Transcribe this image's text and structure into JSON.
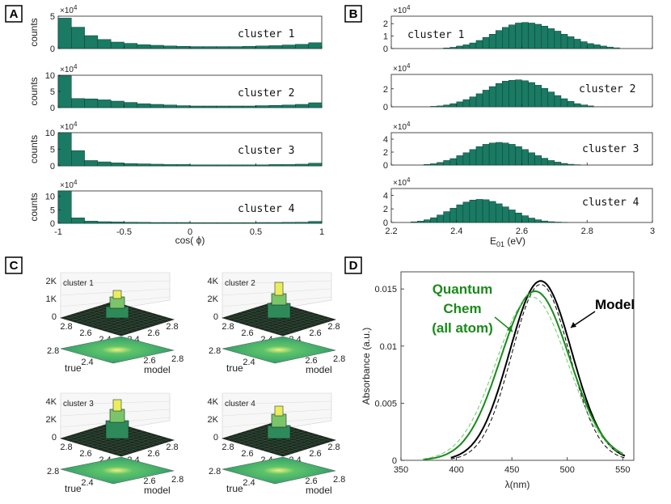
{
  "panel_labels": [
    "A",
    "B",
    "C",
    "D"
  ],
  "colors": {
    "bar": "#1a7a63",
    "bar_edge": "#0b3f33",
    "green": "#1a8a1a",
    "light_green": "#66cc66",
    "black": "#000000"
  },
  "panel_a": {
    "ylabel": "counts",
    "xlabel": "cos( ϕ)",
    "exponent_label": "×10",
    "exponent_power": "4",
    "xticks": [
      "-1",
      "-0.5",
      "0",
      "0.5",
      "1"
    ],
    "subplots": [
      {
        "cluster": "cluster 1",
        "yticks": [
          "0",
          "5"
        ]
      },
      {
        "cluster": "cluster 2",
        "yticks": [
          "0",
          "5",
          "10"
        ]
      },
      {
        "cluster": "cluster 3",
        "yticks": [
          "0",
          "5",
          "10"
        ]
      },
      {
        "cluster": "cluster 4",
        "yticks": [
          "0",
          "5",
          "10"
        ]
      }
    ]
  },
  "panel_b": {
    "xlabel_main": "E",
    "xlabel_sub": "01",
    "xlabel_unit": " (eV)",
    "exponent_label": "×10",
    "exponent_power": "4",
    "xticks": [
      "2.2",
      "2.4",
      "2.6",
      "2.8",
      "3"
    ],
    "subplots": [
      {
        "cluster": "cluster 1",
        "yticks": [
          "0",
          "1",
          "2"
        ]
      },
      {
        "cluster": "cluster 2",
        "yticks": [
          "0",
          "2"
        ]
      },
      {
        "cluster": "cluster 3",
        "yticks": [
          "0",
          "2",
          "4"
        ]
      },
      {
        "cluster": "cluster 4",
        "yticks": [
          "0",
          "2",
          "4"
        ]
      }
    ]
  },
  "panel_c": {
    "subplots": [
      {
        "cluster": "cluster 1",
        "zticks": [
          "0",
          "1K",
          "2K"
        ],
        "ticks_a": [
          "2.8",
          "2.6",
          "2.4"
        ],
        "ticks_b": [
          "2.4",
          "2.6",
          "2.8"
        ],
        "bottom_left": "2.8",
        "bottom_right": "2.8",
        "axis_true": "true",
        "axis_model": "model"
      },
      {
        "cluster": "cluster 2",
        "zticks": [
          "0",
          "2K",
          "4K"
        ],
        "ticks_a": [
          "2.8",
          "2.6",
          "2.4"
        ],
        "ticks_b": [
          "2.4",
          "2.6",
          "2.8"
        ],
        "bottom_left": "2.8",
        "bottom_right": "2.8",
        "axis_true": "true",
        "axis_model": "model"
      },
      {
        "cluster": "cluster 3",
        "zticks": [
          "0",
          "2K",
          "4K"
        ],
        "ticks_a": [
          "2.8",
          "2.6",
          "2.4"
        ],
        "ticks_b": [
          "2.4",
          "2.6",
          "2.8"
        ],
        "bottom_left": "2.8",
        "bottom_right": "2.8",
        "axis_true": "true",
        "axis_model": "model"
      },
      {
        "cluster": "cluster 4",
        "zticks": [
          "0",
          "2K",
          "4K"
        ],
        "ticks_a": [
          "2.8",
          "2.6",
          "2.4"
        ],
        "ticks_b": [
          "2.4",
          "2.6",
          "2.8"
        ],
        "bottom_left": "2.8",
        "bottom_right": "2.8",
        "axis_true": "true",
        "axis_model": "model"
      }
    ]
  },
  "panel_d": {
    "ylabel": "Absorbance (a.u.)",
    "xlabel": "λ(nm)",
    "annotation_left": [
      "Quantum",
      "Chem",
      "(all atom)"
    ],
    "annotation_right": "Model"
  },
  "chart_data": [
    {
      "type": "bar",
      "panel": "A",
      "title": "cluster 1",
      "xlabel": "cos( ϕ)",
      "ylabel": "counts",
      "xlim": [
        -1,
        1
      ],
      "ylim": [
        0,
        5
      ],
      "scale": "x10^4",
      "x": [
        -0.95,
        -0.85,
        -0.75,
        -0.65,
        -0.55,
        -0.45,
        -0.35,
        -0.25,
        -0.15,
        -0.05,
        0.05,
        0.15,
        0.25,
        0.35,
        0.45,
        0.55,
        0.65,
        0.75,
        0.85,
        0.95
      ],
      "values": [
        4.7,
        3.3,
        2.0,
        1.4,
        1.0,
        0.8,
        0.6,
        0.5,
        0.4,
        0.35,
        0.3,
        0.3,
        0.3,
        0.3,
        0.35,
        0.4,
        0.45,
        0.55,
        0.65,
        0.9
      ]
    },
    {
      "type": "bar",
      "panel": "A",
      "title": "cluster 2",
      "xlabel": "cos( ϕ)",
      "ylabel": "counts",
      "xlim": [
        -1,
        1
      ],
      "ylim": [
        0,
        10
      ],
      "scale": "x10^4",
      "x": [
        -0.95,
        -0.85,
        -0.75,
        -0.65,
        -0.55,
        -0.45,
        -0.35,
        -0.25,
        -0.15,
        -0.05,
        0.05,
        0.15,
        0.25,
        0.35,
        0.45,
        0.55,
        0.65,
        0.75,
        0.85,
        0.95
      ],
      "values": [
        9.8,
        2.8,
        2.7,
        2.4,
        2.0,
        1.6,
        1.2,
        1.0,
        0.8,
        0.6,
        0.5,
        0.5,
        0.5,
        0.5,
        0.5,
        0.6,
        0.7,
        0.8,
        1.0,
        1.5
      ]
    },
    {
      "type": "bar",
      "panel": "A",
      "title": "cluster 3",
      "xlabel": "cos( ϕ)",
      "ylabel": "counts",
      "xlim": [
        -1,
        1
      ],
      "ylim": [
        0,
        10
      ],
      "scale": "x10^4",
      "x": [
        -0.95,
        -0.85,
        -0.75,
        -0.65,
        -0.55,
        -0.45,
        -0.35,
        -0.25,
        -0.15,
        -0.05,
        0.05,
        0.15,
        0.25,
        0.35,
        0.45,
        0.55,
        0.65,
        0.75,
        0.85,
        0.95
      ],
      "values": [
        10.0,
        4.6,
        1.6,
        1.2,
        0.9,
        0.7,
        0.6,
        0.5,
        0.4,
        0.4,
        0.3,
        0.3,
        0.3,
        0.3,
        0.3,
        0.3,
        0.4,
        0.4,
        0.5,
        0.8
      ]
    },
    {
      "type": "bar",
      "panel": "A",
      "title": "cluster 4",
      "xlabel": "cos( ϕ)",
      "ylabel": "counts",
      "xlim": [
        -1,
        1
      ],
      "ylim": [
        0,
        12
      ],
      "scale": "x10^4",
      "x": [
        -0.95,
        -0.85,
        -0.75,
        -0.65,
        -0.55,
        -0.45,
        -0.35,
        -0.25,
        -0.15,
        -0.05,
        0.05,
        0.15,
        0.25,
        0.35,
        0.45,
        0.55,
        0.65,
        0.75,
        0.85,
        0.95
      ],
      "values": [
        12.0,
        2.0,
        0.8,
        0.6,
        0.5,
        0.4,
        0.35,
        0.3,
        0.3,
        0.3,
        0.25,
        0.25,
        0.25,
        0.25,
        0.25,
        0.3,
        0.3,
        0.35,
        0.4,
        0.7
      ]
    },
    {
      "type": "bar",
      "panel": "B",
      "title": "cluster 1",
      "xlabel": "E01 (eV)",
      "xlim": [
        2.2,
        3.0
      ],
      "ylim": [
        0,
        2.6
      ],
      "scale": "x10^4",
      "x": [
        2.37,
        2.39,
        2.41,
        2.43,
        2.45,
        2.47,
        2.49,
        2.51,
        2.53,
        2.55,
        2.57,
        2.59,
        2.61,
        2.63,
        2.65,
        2.67,
        2.69,
        2.71,
        2.73,
        2.75,
        2.77,
        2.79,
        2.81,
        2.83,
        2.85,
        2.87,
        2.89
      ],
      "values": [
        0.05,
        0.1,
        0.2,
        0.3,
        0.45,
        0.65,
        0.9,
        1.15,
        1.45,
        1.7,
        1.9,
        2.05,
        2.1,
        2.05,
        1.95,
        1.8,
        1.6,
        1.4,
        1.15,
        0.95,
        0.75,
        0.55,
        0.4,
        0.3,
        0.2,
        0.12,
        0.06
      ]
    },
    {
      "type": "bar",
      "panel": "B",
      "title": "cluster 2",
      "xlabel": "E01 (eV)",
      "xlim": [
        2.2,
        3.0
      ],
      "ylim": [
        0,
        3.6
      ],
      "scale": "x10^4",
      "x": [
        2.33,
        2.35,
        2.37,
        2.39,
        2.41,
        2.43,
        2.45,
        2.47,
        2.49,
        2.51,
        2.53,
        2.55,
        2.57,
        2.59,
        2.61,
        2.63,
        2.65,
        2.67,
        2.69,
        2.71,
        2.73,
        2.75,
        2.77,
        2.79,
        2.81
      ],
      "values": [
        0.05,
        0.1,
        0.2,
        0.35,
        0.55,
        0.8,
        1.1,
        1.45,
        1.85,
        2.25,
        2.6,
        2.85,
        2.95,
        3.0,
        2.9,
        2.7,
        2.4,
        2.05,
        1.65,
        1.25,
        0.9,
        0.6,
        0.35,
        0.2,
        0.1
      ]
    },
    {
      "type": "bar",
      "panel": "B",
      "title": "cluster 3",
      "xlabel": "E01 (eV)",
      "xlim": [
        2.2,
        3.0
      ],
      "ylim": [
        0,
        5.0
      ],
      "scale": "x10^4",
      "x": [
        2.31,
        2.33,
        2.35,
        2.37,
        2.39,
        2.41,
        2.43,
        2.45,
        2.47,
        2.49,
        2.51,
        2.53,
        2.55,
        2.57,
        2.59,
        2.61,
        2.63,
        2.65,
        2.67,
        2.69,
        2.71,
        2.73,
        2.75,
        2.77
      ],
      "values": [
        0.1,
        0.2,
        0.4,
        0.7,
        1.0,
        1.45,
        1.9,
        2.4,
        2.85,
        3.2,
        3.4,
        3.5,
        3.4,
        3.2,
        2.85,
        2.4,
        1.9,
        1.45,
        1.05,
        0.7,
        0.45,
        0.25,
        0.12,
        0.05
      ]
    },
    {
      "type": "bar",
      "panel": "B",
      "title": "cluster 4",
      "xlabel": "E01 (eV)",
      "xlim": [
        2.2,
        3.0
      ],
      "ylim": [
        0,
        5.0
      ],
      "scale": "x10^4",
      "x": [
        2.27,
        2.29,
        2.31,
        2.33,
        2.35,
        2.37,
        2.39,
        2.41,
        2.43,
        2.45,
        2.47,
        2.49,
        2.51,
        2.53,
        2.55,
        2.57,
        2.59,
        2.61,
        2.63,
        2.65,
        2.67,
        2.69,
        2.71,
        2.73
      ],
      "values": [
        0.1,
        0.2,
        0.4,
        0.7,
        1.1,
        1.6,
        2.1,
        2.6,
        3.0,
        3.3,
        3.4,
        3.35,
        3.1,
        2.75,
        2.3,
        1.85,
        1.4,
        1.0,
        0.65,
        0.4,
        0.22,
        0.12,
        0.06,
        0.03
      ]
    },
    {
      "type": "line",
      "panel": "D",
      "xlabel": "λ(nm)",
      "ylabel": "Absorbance (a.u.)",
      "xlim": [
        350,
        560
      ],
      "ylim": [
        0,
        0.0165
      ],
      "xticks": [
        350,
        400,
        450,
        500,
        550
      ],
      "yticks": [
        0,
        0.005,
        0.01,
        0.015
      ],
      "series": [
        {
          "name": "Model",
          "color": "#000000",
          "style": "solid",
          "center": 476,
          "sigma": 28,
          "peak": 0.0157,
          "xrange": [
            395,
            552
          ]
        },
        {
          "name": "Model (dashed)",
          "color": "#000000",
          "style": "dashed",
          "center": 476,
          "sigma": 26,
          "peak": 0.0154,
          "xrange": [
            395,
            552
          ]
        },
        {
          "name": "Quantum Chem (all atom)",
          "color": "#1a8a1a",
          "style": "solid",
          "center": 471,
          "sigma": 31,
          "peak": 0.0148,
          "xrange": [
            370,
            550
          ]
        },
        {
          "name": "Quantum Chem (dashed)",
          "color": "#66cc66",
          "style": "dashed",
          "center": 468,
          "sigma": 32,
          "peak": 0.0143,
          "xrange": [
            370,
            550
          ]
        }
      ]
    }
  ]
}
